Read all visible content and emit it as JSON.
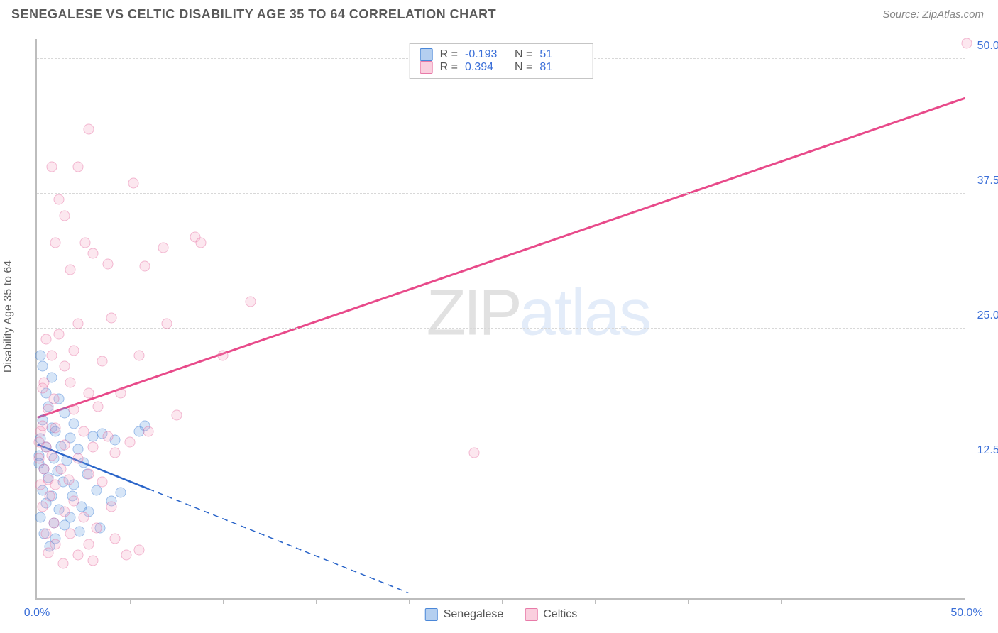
{
  "header": {
    "title": "SENEGALESE VS CELTIC DISABILITY AGE 35 TO 64 CORRELATION CHART",
    "source_prefix": "Source: ",
    "source_name": "ZipAtlas.com"
  },
  "chart": {
    "type": "scatter",
    "ylabel": "Disability Age 35 to 64",
    "xlim": [
      0,
      50
    ],
    "ylim": [
      0,
      52
    ],
    "background_color": "#ffffff",
    "grid_color": "#d8d8d8",
    "axis_color": "#bdbdbd",
    "text_color": "#616161",
    "tick_label_color": "#3b6fd8",
    "y_ticks": [
      {
        "v": 12.5,
        "label": "12.5%"
      },
      {
        "v": 25.0,
        "label": "25.0%"
      },
      {
        "v": 37.5,
        "label": "37.5%"
      },
      {
        "v": 50.0,
        "label": "50.0%"
      }
    ],
    "x_ticks": [
      5,
      10,
      15,
      20,
      25,
      30,
      35,
      40,
      45,
      50
    ],
    "x_start_label": "0.0%",
    "x_end_label": "50.0%",
    "watermark": {
      "part1": "ZIP",
      "part2": "atlas"
    },
    "series": [
      {
        "name": "Senegalese",
        "color_fill": "rgba(105,160,225,0.5)",
        "color_stroke": "#4a87d8",
        "marker_size": 15,
        "R": "-0.193",
        "N": "51",
        "trend": {
          "x1": 0,
          "y1": 14.3,
          "x2": 20,
          "y2": 0.5,
          "solid_until_x": 6,
          "color": "#2964c9",
          "width": 2.5
        },
        "points": [
          [
            0.2,
            22.5
          ],
          [
            0.3,
            21.5
          ],
          [
            0.8,
            20.5
          ],
          [
            0.5,
            19
          ],
          [
            1.2,
            18.5
          ],
          [
            0.6,
            17.8
          ],
          [
            1.5,
            17.2
          ],
          [
            0.3,
            16.5
          ],
          [
            2.0,
            16.2
          ],
          [
            0.8,
            15.8
          ],
          [
            1.0,
            15.5
          ],
          [
            5.8,
            16.0
          ],
          [
            5.5,
            15.5
          ],
          [
            0.2,
            14.8
          ],
          [
            1.8,
            14.9
          ],
          [
            3.0,
            15.0
          ],
          [
            4.2,
            14.7
          ],
          [
            0.5,
            14.0
          ],
          [
            1.3,
            14.1
          ],
          [
            2.2,
            13.8
          ],
          [
            0.1,
            13.2
          ],
          [
            0.9,
            13.0
          ],
          [
            1.6,
            12.8
          ],
          [
            2.5,
            12.6
          ],
          [
            0.4,
            12.0
          ],
          [
            1.1,
            11.8
          ],
          [
            3.5,
            15.3
          ],
          [
            0.6,
            11.2
          ],
          [
            1.4,
            10.8
          ],
          [
            2.0,
            10.5
          ],
          [
            0.3,
            10.0
          ],
          [
            0.8,
            9.5
          ],
          [
            1.9,
            9.5
          ],
          [
            3.2,
            10.0
          ],
          [
            0.5,
            8.8
          ],
          [
            1.2,
            8.2
          ],
          [
            2.4,
            8.5
          ],
          [
            0.2,
            7.5
          ],
          [
            4.0,
            9.0
          ],
          [
            0.9,
            7.0
          ],
          [
            2.8,
            8.0
          ],
          [
            1.5,
            6.8
          ],
          [
            0.4,
            6.0
          ],
          [
            1.0,
            5.5
          ],
          [
            2.3,
            6.2
          ],
          [
            3.4,
            6.5
          ],
          [
            4.5,
            9.8
          ],
          [
            0.7,
            4.8
          ],
          [
            1.8,
            7.5
          ],
          [
            2.7,
            11.5
          ],
          [
            0.1,
            12.5
          ]
        ]
      },
      {
        "name": "Celtics",
        "color_fill": "rgba(245,160,190,0.45)",
        "color_stroke": "#e87aa8",
        "marker_size": 15,
        "R": "0.394",
        "N": "81",
        "trend": {
          "x1": 0,
          "y1": 16.8,
          "x2": 50,
          "y2": 46.5,
          "solid_until_x": 50,
          "color": "#e84a8a",
          "width": 3
        },
        "points": [
          [
            50,
            51.5
          ],
          [
            2.8,
            43.5
          ],
          [
            0.8,
            40.0
          ],
          [
            2.2,
            40.0
          ],
          [
            5.2,
            38.5
          ],
          [
            1.2,
            37.0
          ],
          [
            1.5,
            35.5
          ],
          [
            1.0,
            33.0
          ],
          [
            2.6,
            33.0
          ],
          [
            3.0,
            32.0
          ],
          [
            6.8,
            32.5
          ],
          [
            8.5,
            33.5
          ],
          [
            8.8,
            33.0
          ],
          [
            1.8,
            30.5
          ],
          [
            3.8,
            31.0
          ],
          [
            5.8,
            30.8
          ],
          [
            11.5,
            27.5
          ],
          [
            0.5,
            24.0
          ],
          [
            2.2,
            25.5
          ],
          [
            4.0,
            26.0
          ],
          [
            7.0,
            25.5
          ],
          [
            0.8,
            22.5
          ],
          [
            1.5,
            21.5
          ],
          [
            3.5,
            22.0
          ],
          [
            5.5,
            22.5
          ],
          [
            10.0,
            22.5
          ],
          [
            0.3,
            19.5
          ],
          [
            1.8,
            20.0
          ],
          [
            2.8,
            19.0
          ],
          [
            4.5,
            19.0
          ],
          [
            0.6,
            17.5
          ],
          [
            2.0,
            17.5
          ],
          [
            7.5,
            17.0
          ],
          [
            0.2,
            15.5
          ],
          [
            1.0,
            15.8
          ],
          [
            2.5,
            15.5
          ],
          [
            3.8,
            15.0
          ],
          [
            6.0,
            15.5
          ],
          [
            0.5,
            14.0
          ],
          [
            1.5,
            14.2
          ],
          [
            3.0,
            14.0
          ],
          [
            5.0,
            14.5
          ],
          [
            0.1,
            13.0
          ],
          [
            0.8,
            13.2
          ],
          [
            2.2,
            13.0
          ],
          [
            4.2,
            13.5
          ],
          [
            23.5,
            13.5
          ],
          [
            0.4,
            12.0
          ],
          [
            1.3,
            12.0
          ],
          [
            2.8,
            11.5
          ],
          [
            0.2,
            10.5
          ],
          [
            1.0,
            10.5
          ],
          [
            3.5,
            10.8
          ],
          [
            0.7,
            9.5
          ],
          [
            2.0,
            9.0
          ],
          [
            0.3,
            8.5
          ],
          [
            1.5,
            8.0
          ],
          [
            4.0,
            8.5
          ],
          [
            0.9,
            7.0
          ],
          [
            2.5,
            7.5
          ],
          [
            0.5,
            6.0
          ],
          [
            1.8,
            6.0
          ],
          [
            3.2,
            6.5
          ],
          [
            1.0,
            5.0
          ],
          [
            2.8,
            5.0
          ],
          [
            4.2,
            5.5
          ],
          [
            0.6,
            4.2
          ],
          [
            2.2,
            4.0
          ],
          [
            4.8,
            4.0
          ],
          [
            5.5,
            4.5
          ],
          [
            1.4,
            3.2
          ],
          [
            3.0,
            3.5
          ],
          [
            0.3,
            16.0
          ],
          [
            0.9,
            18.5
          ],
          [
            1.2,
            24.5
          ],
          [
            0.1,
            14.5
          ],
          [
            0.6,
            11.0
          ],
          [
            1.7,
            11.0
          ],
          [
            0.4,
            20.0
          ],
          [
            2.0,
            23.0
          ],
          [
            3.3,
            17.8
          ]
        ]
      }
    ],
    "legend_top": {
      "R_label": "R =",
      "N_label": "N ="
    },
    "legend_bottom": [
      {
        "swatch": "blue",
        "label": "Senegalese"
      },
      {
        "swatch": "pink",
        "label": "Celtics"
      }
    ]
  }
}
